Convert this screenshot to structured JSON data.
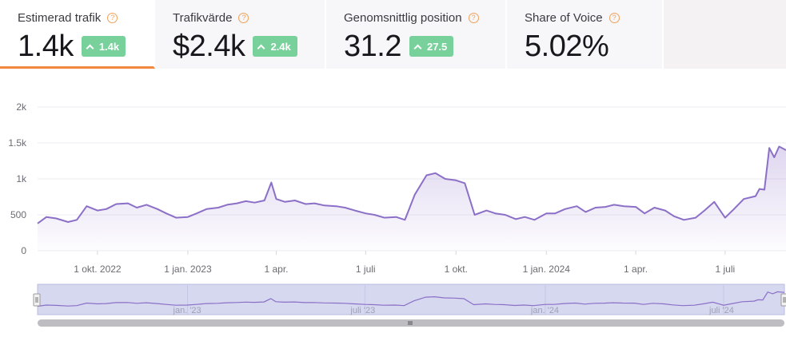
{
  "tabs": [
    {
      "label": "Estimerad trafik",
      "value": "1.4k",
      "badge": "1.4k"
    },
    {
      "label": "Trafikvärde",
      "value": "$2.4k",
      "badge": "2.4k"
    },
    {
      "label": "Genomsnittlig position",
      "value": "31.2",
      "badge": "27.5"
    },
    {
      "label": "Share of Voice",
      "value": "5.02%",
      "badge": ""
    }
  ],
  "help_glyph": "?",
  "colors": {
    "line": "#8c6fc7",
    "accent": "#f0883e",
    "badge": "#78d19a",
    "navigator": "#d5d8ef"
  },
  "chart_data": {
    "type": "area",
    "title": "",
    "xlabel": "",
    "ylabel": "",
    "ylim": [
      0,
      2000
    ],
    "y_ticks": [
      0,
      500,
      1000,
      1500,
      2000
    ],
    "y_tick_labels": [
      "0",
      "500",
      "1k",
      "1.5k",
      "2k"
    ],
    "x_range": [
      "2022-08-01",
      "2024-09-01"
    ],
    "x_ticks": [
      {
        "date": "2022-10-01",
        "label": "1 okt. 2022"
      },
      {
        "date": "2023-01-01",
        "label": "1 jan. 2023"
      },
      {
        "date": "2023-04-01",
        "label": "1 apr."
      },
      {
        "date": "2023-07-01",
        "label": "1 juli"
      },
      {
        "date": "2023-10-01",
        "label": "1 okt."
      },
      {
        "date": "2024-01-01",
        "label": "1 jan. 2024"
      },
      {
        "date": "2024-04-01",
        "label": "1 apr."
      },
      {
        "date": "2024-07-01",
        "label": "1 juli"
      }
    ],
    "navigator_ticks": [
      {
        "date": "2023-01-01",
        "label": "jan. '23"
      },
      {
        "date": "2023-07-01",
        "label": "juli '23"
      },
      {
        "date": "2024-01-01",
        "label": "jan. '24"
      },
      {
        "date": "2024-07-01",
        "label": "juli '24"
      }
    ],
    "series": [
      {
        "x": [
          "2022-08-01",
          "2022-08-10",
          "2022-08-20",
          "2022-09-01",
          "2022-09-10",
          "2022-09-20",
          "2022-10-01",
          "2022-10-10",
          "2022-10-20",
          "2022-11-01",
          "2022-11-10",
          "2022-11-20",
          "2022-12-01",
          "2022-12-10",
          "2022-12-20",
          "2023-01-01",
          "2023-01-10",
          "2023-01-20",
          "2023-02-01",
          "2023-02-10",
          "2023-02-20",
          "2023-03-01",
          "2023-03-10",
          "2023-03-20",
          "2023-03-27",
          "2023-04-01",
          "2023-04-10",
          "2023-04-20",
          "2023-05-01",
          "2023-05-10",
          "2023-05-20",
          "2023-06-01",
          "2023-06-10",
          "2023-06-20",
          "2023-07-01",
          "2023-07-10",
          "2023-07-20",
          "2023-08-01",
          "2023-08-10",
          "2023-08-20",
          "2023-09-01",
          "2023-09-10",
          "2023-09-20",
          "2023-10-01",
          "2023-10-10",
          "2023-10-20",
          "2023-11-01",
          "2023-11-10",
          "2023-11-20",
          "2023-12-01",
          "2023-12-10",
          "2023-12-20",
          "2024-01-01",
          "2024-01-10",
          "2024-01-20",
          "2024-02-01",
          "2024-02-10",
          "2024-02-20",
          "2024-03-01",
          "2024-03-10",
          "2024-03-20",
          "2024-04-01",
          "2024-04-10",
          "2024-04-20",
          "2024-05-01",
          "2024-05-10",
          "2024-05-20",
          "2024-06-01",
          "2024-06-10",
          "2024-06-20",
          "2024-07-01",
          "2024-07-10",
          "2024-07-20",
          "2024-08-01",
          "2024-08-05",
          "2024-08-10",
          "2024-08-15",
          "2024-08-20",
          "2024-08-25",
          "2024-09-01"
        ],
        "values": [
          380,
          470,
          450,
          400,
          430,
          620,
          560,
          580,
          650,
          660,
          600,
          640,
          580,
          520,
          460,
          470,
          520,
          580,
          600,
          640,
          660,
          690,
          670,
          700,
          950,
          720,
          680,
          700,
          650,
          660,
          630,
          620,
          600,
          560,
          520,
          500,
          460,
          470,
          430,
          780,
          1050,
          1080,
          1000,
          980,
          940,
          500,
          560,
          520,
          500,
          440,
          470,
          430,
          520,
          520,
          580,
          620,
          540,
          600,
          610,
          640,
          620,
          610,
          520,
          600,
          560,
          480,
          430,
          460,
          560,
          680,
          460,
          580,
          720,
          760,
          860,
          850,
          1430,
          1300,
          1450,
          1400
        ]
      }
    ]
  }
}
